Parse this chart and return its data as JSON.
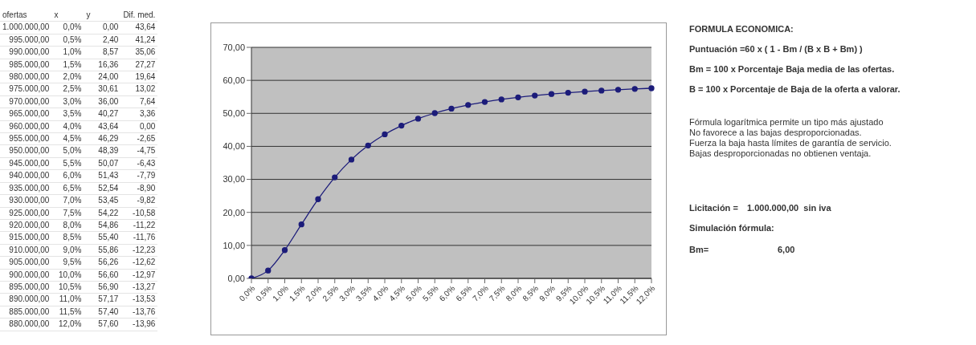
{
  "chart_data": {
    "type": "line",
    "categories": [
      "0,0%",
      "0,5%",
      "1,0%",
      "1,5%",
      "2,0%",
      "2,5%",
      "3,0%",
      "3,5%",
      "4,0%",
      "4,5%",
      "5,0%",
      "5,5%",
      "6,0%",
      "6,5%",
      "7,0%",
      "7,5%",
      "8,0%",
      "8,5%",
      "9,0%",
      "9,5%",
      "10,0%",
      "10,5%",
      "11,0%",
      "11,5%",
      "12,0%"
    ],
    "series": [
      {
        "color": "#1c1c7a",
        "values": [
          0.0,
          2.4,
          8.57,
          16.36,
          24.0,
          30.61,
          36.0,
          40.27,
          43.64,
          46.29,
          48.39,
          50.07,
          51.43,
          52.54,
          53.45,
          54.22,
          54.86,
          55.4,
          55.86,
          56.26,
          56.6,
          56.9,
          57.17,
          57.4,
          57.6
        ]
      }
    ],
    "ylim": [
      0,
      70
    ],
    "yticks": [
      {
        "value": 0,
        "label": "0,00"
      },
      {
        "value": 10,
        "label": "10,00"
      },
      {
        "value": 20,
        "label": "20,00"
      },
      {
        "value": 30,
        "label": "30,00"
      },
      {
        "value": 40,
        "label": "40,00"
      },
      {
        "value": 50,
        "label": "50,00"
      },
      {
        "value": 60,
        "label": "60,00"
      },
      {
        "value": 70,
        "label": "70,00"
      }
    ],
    "grid": "y",
    "marker": "circle",
    "line_style": "solid",
    "annotations": [
      "ofertas\tx\ty\tDif. med.",
      "1.000.000,00\t0,0%\t0,00\t43,64",
      "995.000,00\t0,5%\t2,40\t41,24",
      "990.000,00\t1,0%\t8,57\t35,06",
      "985.000,00\t1,5%\t16,36\t27,27",
      "980.000,00\t2,0%\t24,00\t19,64",
      "975.000,00\t2,5%\t30,61\t13,02",
      "970.000,00\t3,0%\t36,00\t7,64",
      "965.000,00\t3,5%\t40,27\t3,36",
      "960.000,00\t4,0%\t43,64\t0,00",
      "955.000,00\t4,5%\t46,29\t-2,65",
      "950.000,00\t5,0%\t48,39\t-4,75",
      "945.000,00\t5,5%\t50,07\t-6,43",
      "940.000,00\t6,0%\t51,43\t-7,79",
      "935.000,00\t6,5%\t52,54\t-8,90",
      "930.000,00\t7,0%\t53,45\t-9,82",
      "925.000,00\t7,5%\t54,22\t-10,58",
      "920.000,00\t8,0%\t54,86\t-11,22",
      "915.000,00\t8,5%\t55,40\t-11,76",
      "910.000,00\t9,0%\t55,86\t-12,23",
      "905.000,00\t9,5%\t56,26\t-12,62",
      "900.000,00\t10,0%\t56,60\t-12,97",
      "895.000,00\t10,5%\t56,90\t-13,27",
      "890.000,00\t11,0%\t57,17\t-13,53",
      "885.000,00\t11,5%\t57,40\t-13,76",
      "880.000,00\t12,0%\t57,60\t-13,96",
      "FORMULA ECONOMICA:",
      "Puntuación =60 x ( 1 - Bm / (B x B + Bm) )",
      "Bm = 100 x Porcentaje Baja media de las ofertas.",
      "B = 100 x Porcentaje de Baja de la oferta a valorar.",
      "Fórmula logarítmica permite un tipo más ajustado",
      "No favorece a las bajas desproporcionadas.",
      "Fuerza la baja hasta límites de garantía de servicio.",
      "Bajas desproporcionadas no obtienen ventaja.",
      "Licitación =\t1.000.000,00  sin iva",
      "Simulación fórmula:",
      "Bm=\t6,00"
    ]
  }
}
